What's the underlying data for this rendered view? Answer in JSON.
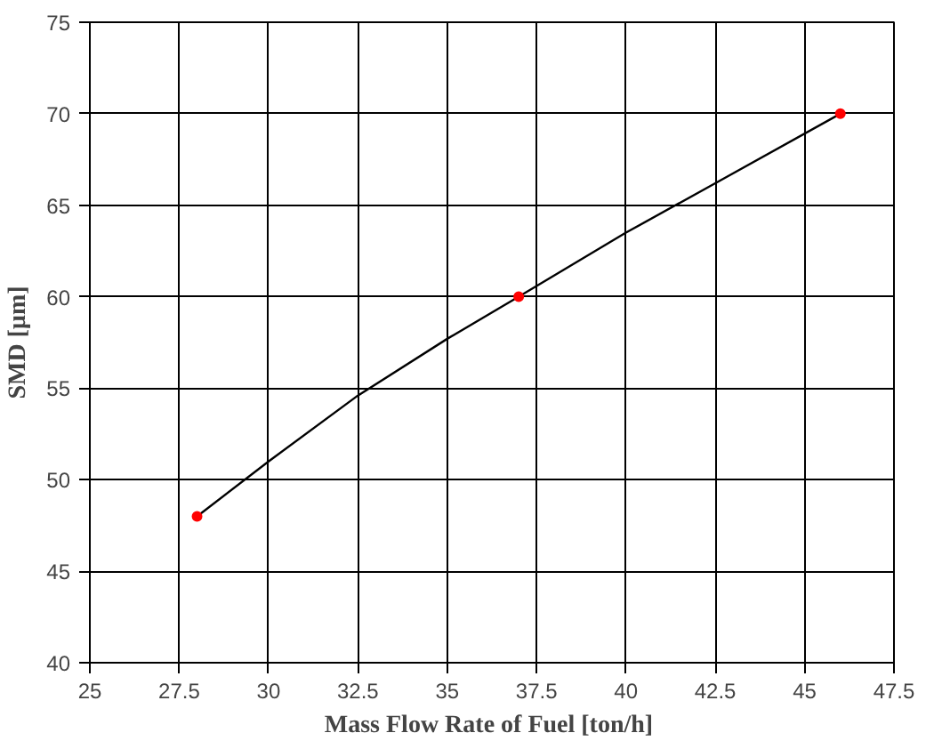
{
  "chart_data": {
    "type": "line",
    "xlabel": "Mass Flow Rate of  Fuel [ton/h]",
    "ylabel": "SMD [μm]",
    "series": [
      {
        "color": "#000000",
        "x": [
          28,
          30,
          32.5,
          35,
          37,
          40,
          42.5,
          46
        ],
        "values": [
          48,
          51,
          54.6,
          57.7,
          60,
          63.5,
          66.2,
          70
        ],
        "marker": "none"
      },
      {
        "type": "scatter",
        "color": "#ff0000",
        "x": [
          28,
          37,
          46
        ],
        "values": [
          48,
          60,
          70
        ],
        "marker": "circle"
      }
    ],
    "xlim": [
      25,
      47.5
    ],
    "xticks": [
      25,
      27.5,
      30,
      32.5,
      35,
      37.5,
      40,
      42.5,
      45,
      47.5
    ],
    "ylim": [
      40,
      75
    ],
    "yticks": [
      40,
      45,
      50,
      55,
      60,
      65,
      70,
      75
    ],
    "grid": true
  }
}
